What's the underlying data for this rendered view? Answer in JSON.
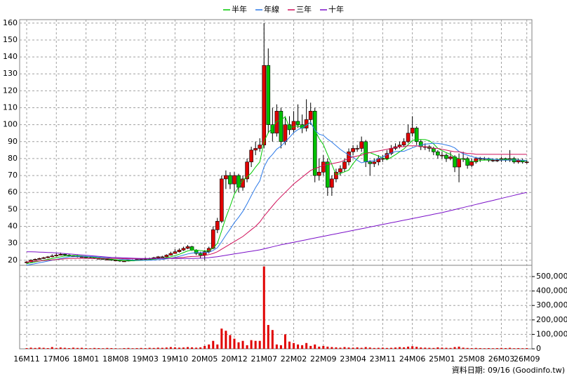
{
  "chart_data": {
    "type": "candlestick",
    "categories": [
      "16M11",
      null,
      null,
      null,
      null,
      null,
      null,
      "17M06",
      null,
      null,
      null,
      null,
      null,
      null,
      "18M01",
      null,
      null,
      null,
      null,
      null,
      null,
      "18M08",
      null,
      null,
      null,
      null,
      null,
      null,
      "19M03",
      null,
      null,
      null,
      null,
      null,
      null,
      "19M10",
      null,
      null,
      null,
      null,
      null,
      null,
      "20M05",
      null,
      null,
      null,
      null,
      null,
      null,
      "20M12",
      null,
      null,
      null,
      null,
      null,
      null,
      "21M07",
      null,
      null,
      null,
      null,
      null,
      null,
      "22M02",
      null,
      null,
      null,
      null,
      null,
      null,
      "22M09",
      null,
      null,
      null,
      null,
      null,
      null,
      "23M04",
      null,
      null,
      null,
      null,
      null,
      null,
      "23M11",
      null,
      null,
      null,
      null,
      null,
      null,
      "24M06",
      null,
      null,
      null,
      null,
      null,
      null,
      "25M01",
      null,
      null,
      null,
      null,
      null,
      null,
      "25M08",
      null,
      null,
      null,
      null,
      null,
      null,
      "26M03",
      null,
      null,
      null,
      null,
      null,
      "26M09"
    ],
    "ohlc": [
      [
        18.5,
        19.5,
        18,
        19
      ],
      [
        19,
        20.5,
        18.8,
        20
      ],
      [
        20,
        21,
        19.8,
        20.5
      ],
      [
        20.5,
        21.5,
        20.2,
        21
      ],
      [
        21,
        22,
        20.8,
        21.5
      ],
      [
        21.5,
        22.5,
        21.2,
        22
      ],
      [
        22,
        23.5,
        21.8,
        22.5
      ],
      [
        22.5,
        24,
        22.2,
        23
      ],
      [
        23,
        24.5,
        22.8,
        23.5
      ],
      [
        23.5,
        24,
        22.6,
        23
      ],
      [
        23,
        23.5,
        22.2,
        22.5
      ],
      [
        22.5,
        23,
        22,
        22.5
      ],
      [
        22.5,
        23,
        21.7,
        22
      ],
      [
        22,
        22.6,
        21.6,
        22
      ],
      [
        22,
        22.3,
        21.2,
        21.5
      ],
      [
        21.5,
        22,
        21.2,
        21.5
      ],
      [
        21.5,
        21.8,
        20.7,
        21
      ],
      [
        21,
        21.5,
        20.7,
        21
      ],
      [
        21,
        21.3,
        20.2,
        20.5
      ],
      [
        20.5,
        21,
        20.2,
        20.5
      ],
      [
        20.5,
        20.8,
        19.6,
        20
      ],
      [
        20,
        20.5,
        19.6,
        20
      ],
      [
        20,
        20.3,
        19,
        19.5
      ],
      [
        19.5,
        20,
        19.1,
        19.5
      ],
      [
        19.5,
        20.4,
        19.3,
        20
      ],
      [
        20,
        20.5,
        19.7,
        20
      ],
      [
        20,
        21,
        19.8,
        20.5
      ],
      [
        20.5,
        21,
        20.2,
        20.5
      ],
      [
        20.5,
        21.5,
        20.3,
        21
      ],
      [
        21,
        21.5,
        20.6,
        21
      ],
      [
        21,
        22,
        20.8,
        21.5
      ],
      [
        21.5,
        22.5,
        21.2,
        22
      ],
      [
        22,
        22.6,
        21.6,
        22
      ],
      [
        22,
        23.5,
        21.8,
        23
      ],
      [
        23,
        25,
        22.8,
        24
      ],
      [
        24,
        26.5,
        23.8,
        25
      ],
      [
        25,
        27,
        24.5,
        26
      ],
      [
        26,
        28,
        25.5,
        27
      ],
      [
        27,
        29,
        26.5,
        28
      ],
      [
        28,
        28.5,
        25.5,
        26
      ],
      [
        26,
        26.5,
        23,
        24
      ],
      [
        24,
        25,
        21,
        23
      ],
      [
        23,
        26,
        20,
        25
      ],
      [
        25,
        28,
        24,
        27
      ],
      [
        27,
        40,
        26.5,
        38
      ],
      [
        38,
        45,
        36,
        43
      ],
      [
        43,
        70,
        42,
        68
      ],
      [
        68,
        73,
        62,
        70
      ],
      [
        70,
        72,
        62,
        65
      ],
      [
        65,
        72,
        60,
        70
      ],
      [
        70,
        71,
        60,
        63
      ],
      [
        63,
        70,
        61,
        68
      ],
      [
        68,
        80,
        66,
        78
      ],
      [
        78,
        87,
        75,
        85
      ],
      [
        85,
        90,
        82,
        86
      ],
      [
        86,
        92,
        84,
        88
      ],
      [
        88,
        160,
        86,
        135
      ],
      [
        135,
        145,
        95,
        100
      ],
      [
        100,
        110,
        90,
        95
      ],
      [
        95,
        112,
        93,
        108
      ],
      [
        108,
        110,
        86,
        90
      ],
      [
        90,
        105,
        88,
        100
      ],
      [
        100,
        105,
        94,
        97
      ],
      [
        97,
        108,
        95,
        102
      ],
      [
        102,
        112,
        98,
        100
      ],
      [
        100,
        106,
        95,
        98
      ],
      [
        98,
        115,
        96,
        103
      ],
      [
        103,
        113,
        100,
        108
      ],
      [
        108,
        110,
        66,
        70
      ],
      [
        70,
        80,
        67,
        72
      ],
      [
        72,
        82,
        70,
        78
      ],
      [
        78,
        80,
        58,
        63
      ],
      [
        63,
        70,
        58,
        68
      ],
      [
        68,
        74,
        66,
        72
      ],
      [
        72,
        76,
        70,
        74
      ],
      [
        74,
        80,
        72,
        78
      ],
      [
        78,
        86,
        76,
        84
      ],
      [
        84,
        88,
        82,
        86
      ],
      [
        86,
        88,
        84,
        86
      ],
      [
        86,
        93,
        84,
        90
      ],
      [
        90,
        91,
        75,
        78
      ],
      [
        78,
        79,
        70,
        77
      ],
      [
        77,
        80,
        75,
        78
      ],
      [
        78,
        82,
        76,
        80
      ],
      [
        80,
        82,
        78,
        80
      ],
      [
        80,
        85,
        79,
        83
      ],
      [
        83,
        88,
        82,
        86
      ],
      [
        86,
        89,
        85,
        87
      ],
      [
        87,
        90,
        86,
        88
      ],
      [
        88,
        92,
        87,
        90
      ],
      [
        90,
        100,
        89,
        95
      ],
      [
        95,
        105,
        93,
        98
      ],
      [
        98,
        99,
        88,
        90
      ],
      [
        90,
        91,
        85,
        87
      ],
      [
        87,
        89,
        85,
        87
      ],
      [
        87,
        88,
        84,
        86
      ],
      [
        86,
        87,
        82,
        84
      ],
      [
        84,
        85,
        80,
        82
      ],
      [
        82,
        84,
        80,
        82
      ],
      [
        82,
        83,
        78,
        80
      ],
      [
        80,
        84,
        79,
        81
      ],
      [
        81,
        82,
        72,
        75
      ],
      [
        75,
        83,
        66,
        80
      ],
      [
        80,
        84,
        78,
        80
      ],
      [
        80,
        81,
        74,
        76
      ],
      [
        76,
        80,
        75,
        78
      ],
      [
        78,
        81,
        77,
        80
      ],
      [
        80,
        81,
        78,
        80
      ],
      [
        80,
        81,
        79,
        80
      ],
      [
        80,
        80.5,
        78,
        79
      ],
      [
        79,
        80,
        78,
        79
      ],
      [
        79,
        80,
        78,
        79
      ],
      [
        79,
        81,
        78,
        80
      ],
      [
        80,
        80.5,
        78,
        79
      ],
      [
        79,
        85,
        78,
        80
      ],
      [
        80,
        81,
        77,
        78
      ],
      [
        78,
        80,
        77,
        79
      ],
      [
        79,
        80,
        77,
        78
      ],
      [
        78,
        79,
        77,
        78
      ]
    ],
    "up_color": "#e00000",
    "down_color": "#00c000",
    "ylim": [
      17,
      162
    ],
    "yticks": [
      20,
      30,
      40,
      50,
      60,
      70,
      80,
      90,
      100,
      110,
      120,
      130,
      140,
      150,
      160
    ],
    "grid": true,
    "legend": "top",
    "volume": {
      "color": "#e00000",
      "y2lim": [
        0,
        578000
      ],
      "y2ticks": [
        0,
        {
          "value": 100000,
          "label": "100,000"
        },
        {
          "value": 200000,
          "label": "200,000"
        },
        {
          "value": 300000,
          "label": "300,000"
        },
        {
          "value": 400000,
          "label": "400,000"
        },
        {
          "value": 500000,
          "label": "500,000"
        }
      ],
      "values": [
        5000,
        8000,
        6000,
        9000,
        7000,
        5000,
        12000,
        6000,
        9000,
        7000,
        5000,
        8000,
        6000,
        7000,
        5000,
        4000,
        6000,
        5000,
        4000,
        6000,
        5000,
        4000,
        3000,
        5000,
        6000,
        4000,
        5000,
        6000,
        5000,
        7000,
        6000,
        8000,
        7000,
        9000,
        12000,
        10000,
        8000,
        9000,
        12000,
        10000,
        8000,
        10000,
        20000,
        30000,
        55000,
        30000,
        140000,
        125000,
        95000,
        70000,
        45000,
        55000,
        25000,
        60000,
        55000,
        55000,
        570000,
        165000,
        130000,
        30000,
        25000,
        100000,
        50000,
        40000,
        30000,
        25000,
        40000,
        20000,
        30000,
        15000,
        20000,
        15000,
        12000,
        10000,
        8000,
        12000,
        9000,
        8000,
        10000,
        7000,
        12000,
        9000,
        6000,
        7000,
        8000,
        6000,
        7000,
        9000,
        12000,
        10000,
        15000,
        18000,
        14000,
        9000,
        8000,
        7000,
        6000,
        10000,
        8000,
        7000,
        6000,
        12000,
        15000,
        8000,
        6000,
        5000,
        6000,
        5000,
        4000,
        5000,
        4000,
        5000,
        6000,
        5000,
        7000,
        4000,
        5000,
        4000,
        5000
      ]
    },
    "series": [
      {
        "name": "半年",
        "color": "#00c800",
        "values": [
          18,
          18.5,
          19,
          19.5,
          20,
          20.5,
          21,
          21.5,
          22,
          22.5,
          22.5,
          22.8,
          22.7,
          22.5,
          22.2,
          22,
          21.7,
          21.4,
          21.1,
          20.8,
          20.5,
          20.3,
          20,
          19.8,
          19.7,
          19.7,
          19.8,
          19.9,
          20.1,
          20.3,
          20.6,
          20.9,
          21.2,
          21.5,
          22,
          22.7,
          23.5,
          24.5,
          25.5,
          26,
          26,
          25.7,
          25.5,
          25.5,
          27.2,
          30,
          37.3,
          45.2,
          51.8,
          59,
          63.2,
          67.3,
          69,
          71.5,
          75,
          78,
          90,
          95.3,
          98.2,
          102,
          102.7,
          104.7,
          98.3,
          98.7,
          99.5,
          97.8,
          100,
          101.3,
          96.8,
          91.8,
          88.2,
          82.3,
          76.5,
          70.5,
          71.2,
          72.2,
          73.2,
          77,
          80,
          83,
          83.7,
          83.5,
          82.5,
          81.5,
          80.5,
          79.3,
          80.7,
          82.3,
          84,
          85.7,
          88.2,
          90.7,
          91.3,
          91.3,
          91.2,
          90.5,
          88.7,
          86,
          84.7,
          83.5,
          82.5,
          80.7,
          80,
          79.7,
          78.7,
          78.3,
          78.2,
          79,
          79,
          79.2,
          79.5,
          79.5,
          79.5,
          79.3,
          79.5,
          79.3,
          79.2,
          78.8,
          78.7
        ]
      },
      {
        "name": "年線",
        "color": "#2a78e8",
        "values": [
          17,
          17.5,
          18,
          18.5,
          19,
          19.5,
          20,
          20.5,
          21,
          21.5,
          22,
          22,
          22.2,
          22.3,
          22.3,
          22.2,
          22,
          21.8,
          21.6,
          21.4,
          21.2,
          21,
          20.7,
          20.5,
          20.3,
          20.1,
          20,
          20,
          20,
          20,
          20.1,
          20.3,
          20.5,
          20.8,
          21.2,
          21.7,
          22.3,
          23,
          23.7,
          24.2,
          24.5,
          24.6,
          24.6,
          24.7,
          25.8,
          27.4,
          30.9,
          34.8,
          38.3,
          42.2,
          45.3,
          48.8,
          53.3,
          58.1,
          62.9,
          66.8,
          75,
          79.8,
          82.4,
          85.6,
          87.3,
          89.9,
          92.5,
          95.3,
          97.1,
          98.2,
          99.6,
          101.3,
          96.7,
          94.4,
          93.7,
          91.5,
          89.7,
          87.6,
          85.4,
          83.7,
          82.1,
          80.8,
          79,
          77.5,
          78.2,
          78.6,
          78.6,
          80,
          81,
          82.3,
          83.3,
          84.1,
          84.3,
          84.3,
          85.3,
          86.3,
          87.3,
          87.9,
          88.5,
          88.8,
          89.1,
          88.9,
          88.6,
          88,
          87.4,
          86.3,
          84.2,
          82.8,
          82,
          81.2,
          80.5,
          80.3,
          80,
          79.8,
          79.6,
          79.4,
          79.2,
          79.1,
          79.2,
          79.2,
          79.1,
          79,
          78.9
        ]
      },
      {
        "name": "三年",
        "color": "#d0105a",
        "values": [
          19,
          19.2,
          19.4,
          19.6,
          19.8,
          20,
          20.2,
          20.4,
          20.6,
          20.8,
          21,
          21,
          21.1,
          21.1,
          21.1,
          21.1,
          21,
          21,
          21,
          21,
          21,
          21,
          21,
          20.9,
          20.9,
          20.9,
          20.9,
          20.9,
          20.9,
          20.9,
          20.9,
          21,
          21,
          21.1,
          21.2,
          21.3,
          21.5,
          21.7,
          22,
          22.2,
          22.3,
          22.5,
          22.8,
          23.3,
          24,
          25,
          26.5,
          28,
          29.5,
          31,
          32.5,
          34,
          36,
          38,
          40,
          42.5,
          46,
          49,
          52,
          55,
          57.5,
          60,
          62.5,
          65,
          67,
          69,
          71,
          73,
          74,
          75,
          76,
          76.5,
          77,
          77.5,
          78,
          79,
          80,
          81,
          81.5,
          82,
          83,
          83.5,
          84,
          84.5,
          85,
          85.5,
          86,
          86.5,
          87,
          87,
          87.5,
          87.5,
          87.5,
          87,
          87,
          86.5,
          86,
          86,
          85.5,
          85,
          84.5,
          84,
          84,
          83.5,
          83,
          83,
          82.5,
          82.5,
          82.5,
          82.5,
          82.5,
          82.5,
          82.5,
          82.5,
          82.5,
          82.5,
          82.5,
          82.5,
          82.5
        ]
      },
      {
        "name": "十年",
        "color": "#7a10c8",
        "values": [
          25,
          25,
          24.9,
          24.8,
          24.7,
          24.6,
          24.5,
          24.3,
          24.1,
          23.9,
          23.7,
          23.5,
          23.3,
          23.1,
          22.9,
          22.7,
          22.5,
          22.3,
          22.1,
          21.9,
          21.7,
          21.6,
          21.5,
          21.4,
          21.3,
          21.2,
          21.1,
          21,
          21,
          21,
          21,
          21,
          21,
          21,
          21,
          21,
          21,
          21,
          21,
          21,
          21.1,
          21.2,
          21.3,
          21.5,
          21.8,
          22.1,
          22.5,
          22.9,
          23.3,
          23.7,
          24.1,
          24.5,
          24.9,
          25.3,
          25.7,
          26.1,
          26.7,
          27.3,
          27.9,
          28.5,
          29.1,
          29.6,
          30.1,
          30.6,
          31.1,
          31.6,
          32.1,
          32.6,
          33.1,
          33.6,
          34.1,
          34.6,
          35.1,
          35.6,
          36.1,
          36.6,
          37.1,
          37.6,
          38.1,
          38.6,
          39.1,
          39.6,
          40.1,
          40.6,
          41.1,
          41.6,
          42.1,
          42.6,
          43.1,
          43.6,
          44.1,
          44.6,
          45.1,
          45.6,
          46.1,
          46.6,
          47.1,
          47.6,
          48.1,
          48.7,
          49.3,
          49.9,
          50.5,
          51.1,
          51.7,
          52.3,
          52.9,
          53.5,
          54.1,
          54.7,
          55.3,
          55.9,
          56.5,
          57.1,
          57.7,
          58.3,
          58.9,
          59.5,
          60
        ]
      }
    ],
    "source": "資料日期: 09/16 (Goodinfo.tw)"
  }
}
